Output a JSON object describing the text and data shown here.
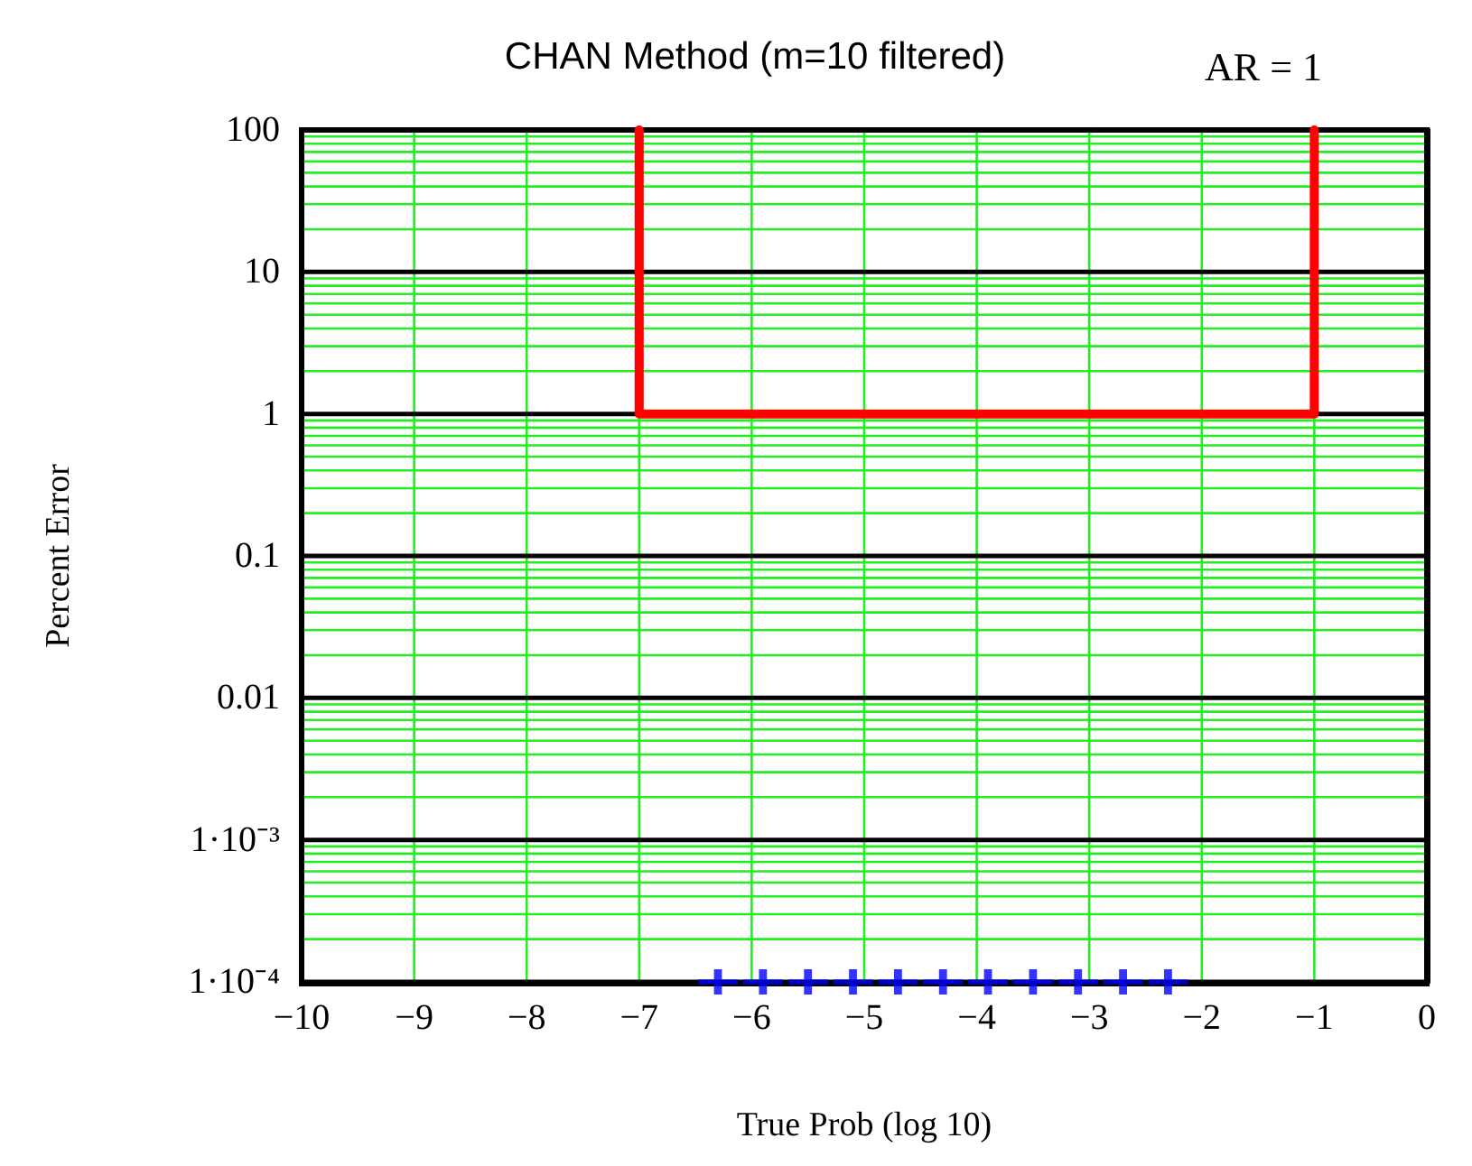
{
  "chart_data": {
    "type": "line",
    "title": "CHAN Method (m=10 filtered)",
    "xlabel": "True Prob (log 10)",
    "ylabel": "Percent Error",
    "annotations": [
      "AR = 1"
    ],
    "log": "y",
    "grid": true,
    "xlim": [
      -10,
      0
    ],
    "xticks": [
      -10,
      -9,
      -8,
      -7,
      -6,
      -5,
      -4,
      -3,
      -2,
      -1,
      0
    ],
    "ylim": [
      0.0001,
      100
    ],
    "yticks": [
      {
        "value": 0.0001,
        "label": "1·10⁻⁴"
      },
      {
        "value": 0.0002,
        "label": null
      },
      {
        "value": 0.0003,
        "label": null
      },
      {
        "value": 0.0004,
        "label": null
      },
      {
        "value": 0.0005,
        "label": null
      },
      {
        "value": 0.0006,
        "label": null
      },
      {
        "value": 0.0007,
        "label": null
      },
      {
        "value": 0.0008,
        "label": null
      },
      {
        "value": 0.0009,
        "label": null
      },
      {
        "value": 0.001,
        "label": "1·10⁻³"
      },
      {
        "value": 0.002,
        "label": null
      },
      {
        "value": 0.003,
        "label": null
      },
      {
        "value": 0.004,
        "label": null
      },
      {
        "value": 0.005,
        "label": null
      },
      {
        "value": 0.006,
        "label": null
      },
      {
        "value": 0.007,
        "label": null
      },
      {
        "value": 0.008,
        "label": null
      },
      {
        "value": 0.009,
        "label": null
      },
      0.01,
      {
        "value": 0.02,
        "label": null
      },
      {
        "value": 0.03,
        "label": null
      },
      {
        "value": 0.04,
        "label": null
      },
      {
        "value": 0.05,
        "label": null
      },
      {
        "value": 0.06,
        "label": null
      },
      {
        "value": 0.07,
        "label": null
      },
      {
        "value": 0.08,
        "label": null
      },
      {
        "value": 0.09,
        "label": null
      },
      0.1,
      {
        "value": 0.2,
        "label": null
      },
      {
        "value": 0.3,
        "label": null
      },
      {
        "value": 0.4,
        "label": null
      },
      {
        "value": 0.5,
        "label": null
      },
      {
        "value": 0.6,
        "label": null
      },
      {
        "value": 0.7,
        "label": null
      },
      {
        "value": 0.8,
        "label": null
      },
      {
        "value": 0.9,
        "label": null
      },
      1,
      {
        "value": 2,
        "label": null
      },
      {
        "value": 3,
        "label": null
      },
      {
        "value": 4,
        "label": null
      },
      {
        "value": 5,
        "label": null
      },
      {
        "value": 6,
        "label": null
      },
      {
        "value": 7,
        "label": null
      },
      {
        "value": 8,
        "label": null
      },
      {
        "value": 9,
        "label": null
      },
      10,
      {
        "value": 20,
        "label": null
      },
      {
        "value": 30,
        "label": null
      },
      {
        "value": 40,
        "label": null
      },
      {
        "value": 50,
        "label": null
      },
      {
        "value": 60,
        "label": null
      },
      {
        "value": 70,
        "label": null
      },
      {
        "value": 80,
        "label": null
      },
      {
        "value": 90,
        "label": null
      },
      100
    ],
    "series": [
      {
        "color": "#ff0000",
        "x": [
          -7,
          -7,
          -1,
          -1
        ],
        "values": [
          100,
          1,
          1,
          100
        ],
        "marker": "none",
        "line_style": "solid"
      },
      {
        "type": "scatter",
        "color": "#0000ff",
        "x": [
          -6.3,
          -5.9,
          -5.5,
          -5.1,
          -4.7,
          -4.3,
          -3.9,
          -3.5,
          -3.1,
          -2.7,
          -2.3
        ],
        "values": [
          0.0001,
          0.0001,
          0.0001,
          0.0001,
          0.0001,
          0.0001,
          0.0001,
          0.0001,
          0.0001,
          0.0001,
          0.0001
        ],
        "marker": "cross"
      }
    ]
  }
}
